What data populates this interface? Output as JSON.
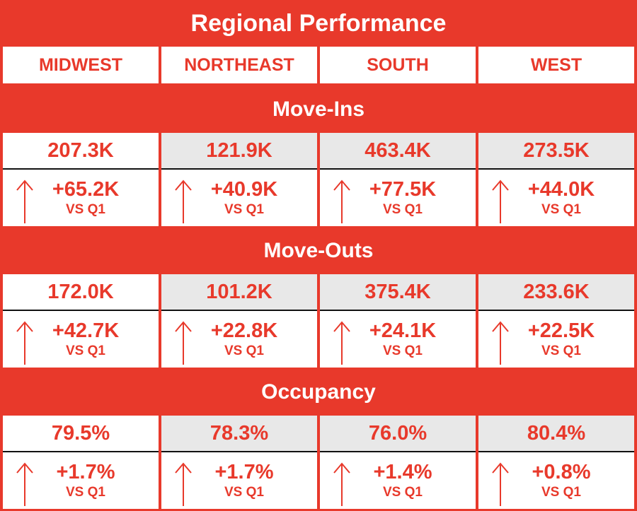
{
  "title": "Regional Performance",
  "regions": [
    "MIDWEST",
    "NORTHEAST",
    "SOUTH",
    "WEST"
  ],
  "comparison_label": "VS Q1",
  "colors": {
    "accent": "#e8392b",
    "grey_cell": "#e8e8e8",
    "white": "#ffffff"
  },
  "arrow_icon": "arrow-up-icon",
  "sections": [
    {
      "title": "Move-Ins",
      "values": [
        "207.3K",
        "121.9K",
        "463.4K",
        "273.5K"
      ],
      "deltas": [
        "+65.2K",
        "+40.9K",
        "+77.5K",
        "+44.0K"
      ]
    },
    {
      "title": "Move-Outs",
      "values": [
        "172.0K",
        "101.2K",
        "375.4K",
        "233.6K"
      ],
      "deltas": [
        "+42.7K",
        "+22.8K",
        "+24.1K",
        "+22.5K"
      ]
    },
    {
      "title": "Occupancy",
      "values": [
        "79.5%",
        "78.3%",
        "76.0%",
        "80.4%"
      ],
      "deltas": [
        "+1.7%",
        "+1.7%",
        "+1.4%",
        "+0.8%"
      ]
    }
  ]
}
